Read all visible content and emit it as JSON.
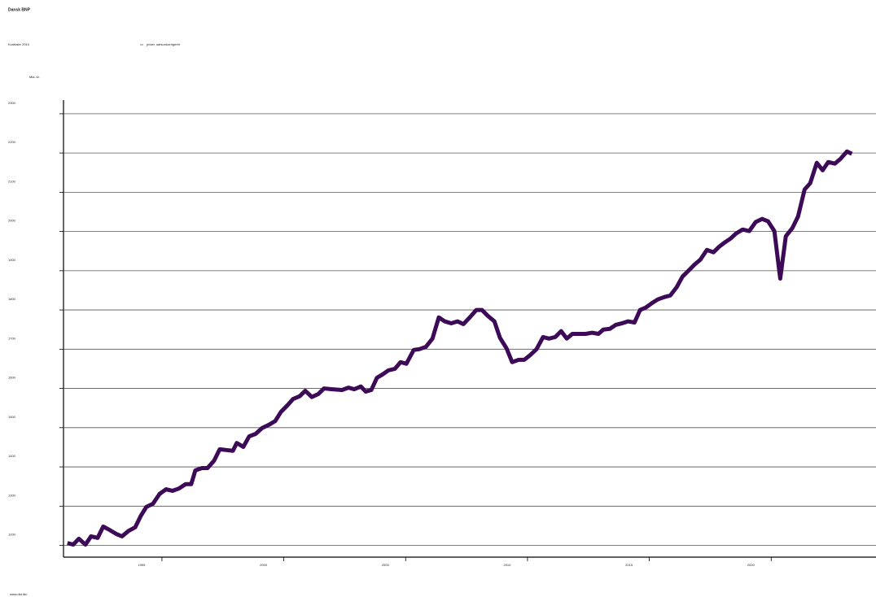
{
  "chart_data": {
    "type": "line",
    "title": "Dansk BNP",
    "subtitle": "Kvartaler 2010",
    "ylabel": "Mia. kr.",
    "source": "www.dst.dk/",
    "x": [
      1991.12,
      1991.36,
      1991.59,
      1991.86,
      1992.09,
      1992.36,
      1992.59,
      1992.86,
      1993.13,
      1993.36,
      1993.63,
      1993.9,
      1994.13,
      1994.36,
      1994.63,
      1994.9,
      1995.17,
      1995.43,
      1995.7,
      1995.97,
      1996.2,
      1996.37,
      1996.64,
      1996.87,
      1997.14,
      1997.37,
      1997.64,
      1997.91,
      1998.07,
      1998.34,
      1998.58,
      1998.84,
      1999.11,
      1999.38,
      1999.65,
      1999.88,
      2000.15,
      2000.38,
      2000.65,
      2000.88,
      2001.15,
      2001.42,
      2001.65,
      2001.95,
      2002.39,
      2002.65,
      2002.89,
      2003.16,
      2003.36,
      2003.59,
      2003.82,
      2004.06,
      2004.29,
      2004.56,
      2004.79,
      2005.03,
      2005.33,
      2005.56,
      2005.83,
      2006.1,
      2006.36,
      2006.6,
      2006.87,
      2007.13,
      2007.37,
      2007.63,
      2007.9,
      2008.13,
      2008.37,
      2008.64,
      2008.87,
      2009.14,
      2009.37,
      2009.64,
      2009.87,
      2010.11,
      2010.37,
      2010.64,
      2010.88,
      2011.14,
      2011.38,
      2011.61,
      2011.84,
      2012.11,
      2012.38,
      2012.65,
      2012.91,
      2013.11,
      2013.38,
      2013.62,
      2013.88,
      2014.12,
      2014.39,
      2014.62,
      2014.85,
      2015.12,
      2015.35,
      2015.62,
      2015.86,
      2016.12,
      2016.36,
      2016.62,
      2016.86,
      2017.09,
      2017.36,
      2017.63,
      2017.86,
      2018.09,
      2018.33,
      2018.56,
      2018.83,
      2019.1,
      2019.36,
      2019.63,
      2019.87,
      2020.13,
      2020.37,
      2020.6,
      2020.87,
      2021.1,
      2021.37,
      2021.6,
      2021.87,
      2022.11,
      2022.34,
      2022.61,
      2022.84,
      2023.11,
      2023.31
    ],
    "series": [
      {
        "name": "priser, sæsonkorrigeret",
        "color": "#3d0a57",
        "values": [
          1206,
          1202,
          1217,
          1202,
          1223,
          1219,
          1248,
          1239,
          1229,
          1223,
          1237,
          1246,
          1275,
          1298,
          1306,
          1331,
          1343,
          1339,
          1345,
          1356,
          1356,
          1391,
          1397,
          1397,
          1416,
          1445,
          1443,
          1441,
          1461,
          1451,
          1478,
          1484,
          1499,
          1507,
          1517,
          1540,
          1557,
          1573,
          1580,
          1594,
          1578,
          1586,
          1600,
          1598,
          1596,
          1602,
          1598,
          1605,
          1592,
          1596,
          1627,
          1636,
          1646,
          1650,
          1667,
          1663,
          1698,
          1700,
          1706,
          1727,
          1781,
          1771,
          1766,
          1771,
          1764,
          1781,
          1800,
          1800,
          1785,
          1771,
          1729,
          1702,
          1667,
          1673,
          1673,
          1685,
          1700,
          1731,
          1727,
          1731,
          1746,
          1727,
          1739,
          1739,
          1739,
          1742,
          1739,
          1750,
          1752,
          1762,
          1766,
          1771,
          1768,
          1800,
          1806,
          1818,
          1827,
          1833,
          1837,
          1858,
          1885,
          1901,
          1916,
          1928,
          1953,
          1947,
          1961,
          1972,
          1982,
          1995,
          2005,
          2001,
          2024,
          2032,
          2026,
          2001,
          1880,
          1988,
          2009,
          2038,
          2107,
          2123,
          2175,
          2156,
          2177,
          2173,
          2185,
          2204,
          2198
        ]
      }
    ],
    "xlim": [
      1990.96,
      2024.3
    ],
    "xticks": [
      1995,
      2000,
      2005,
      2010,
      2015,
      2020
    ],
    "ylim": [
      1170,
      2335
    ],
    "yticks": [
      1200,
      1300,
      1400,
      1500,
      1600,
      1700,
      1800,
      1900,
      2000,
      2100,
      2200,
      2300
    ],
    "grid": true
  }
}
